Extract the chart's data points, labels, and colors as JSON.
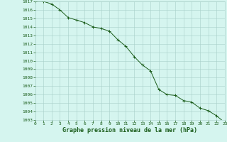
{
  "x": [
    0,
    1,
    2,
    3,
    4,
    5,
    6,
    7,
    8,
    9,
    10,
    11,
    12,
    13,
    14,
    15,
    16,
    17,
    18,
    19,
    20,
    21,
    22,
    23
  ],
  "y": [
    1017.0,
    1017.0,
    1016.7,
    1016.0,
    1015.1,
    1014.8,
    1014.5,
    1014.0,
    1013.8,
    1013.5,
    1012.5,
    1011.7,
    1010.5,
    1009.5,
    1008.8,
    1006.6,
    1006.0,
    1005.9,
    1005.3,
    1005.1,
    1004.4,
    1004.1,
    1003.5,
    1002.7
  ],
  "ylim_min": 1003,
  "ylim_max": 1017,
  "xlim_min": 0,
  "xlim_max": 23,
  "line_color": "#1a5c1a",
  "marker_color": "#1a5c1a",
  "bg_color": "#d5f5ef",
  "grid_color": "#a8cfc8",
  "xlabel": "Graphe pression niveau de la mer (hPa)",
  "xlabel_color": "#1a5c1a",
  "tick_color": "#1a5c1a",
  "tick_fontsize": 4.5,
  "xlabel_fontsize": 6.0,
  "xtick_labels": [
    "0",
    "1",
    "2",
    "3",
    "4",
    "5",
    "6",
    "7",
    "8",
    "9",
    "10",
    "11",
    "12",
    "13",
    "14",
    "15",
    "16",
    "17",
    "18",
    "19",
    "20",
    "21",
    "22",
    "23"
  ]
}
